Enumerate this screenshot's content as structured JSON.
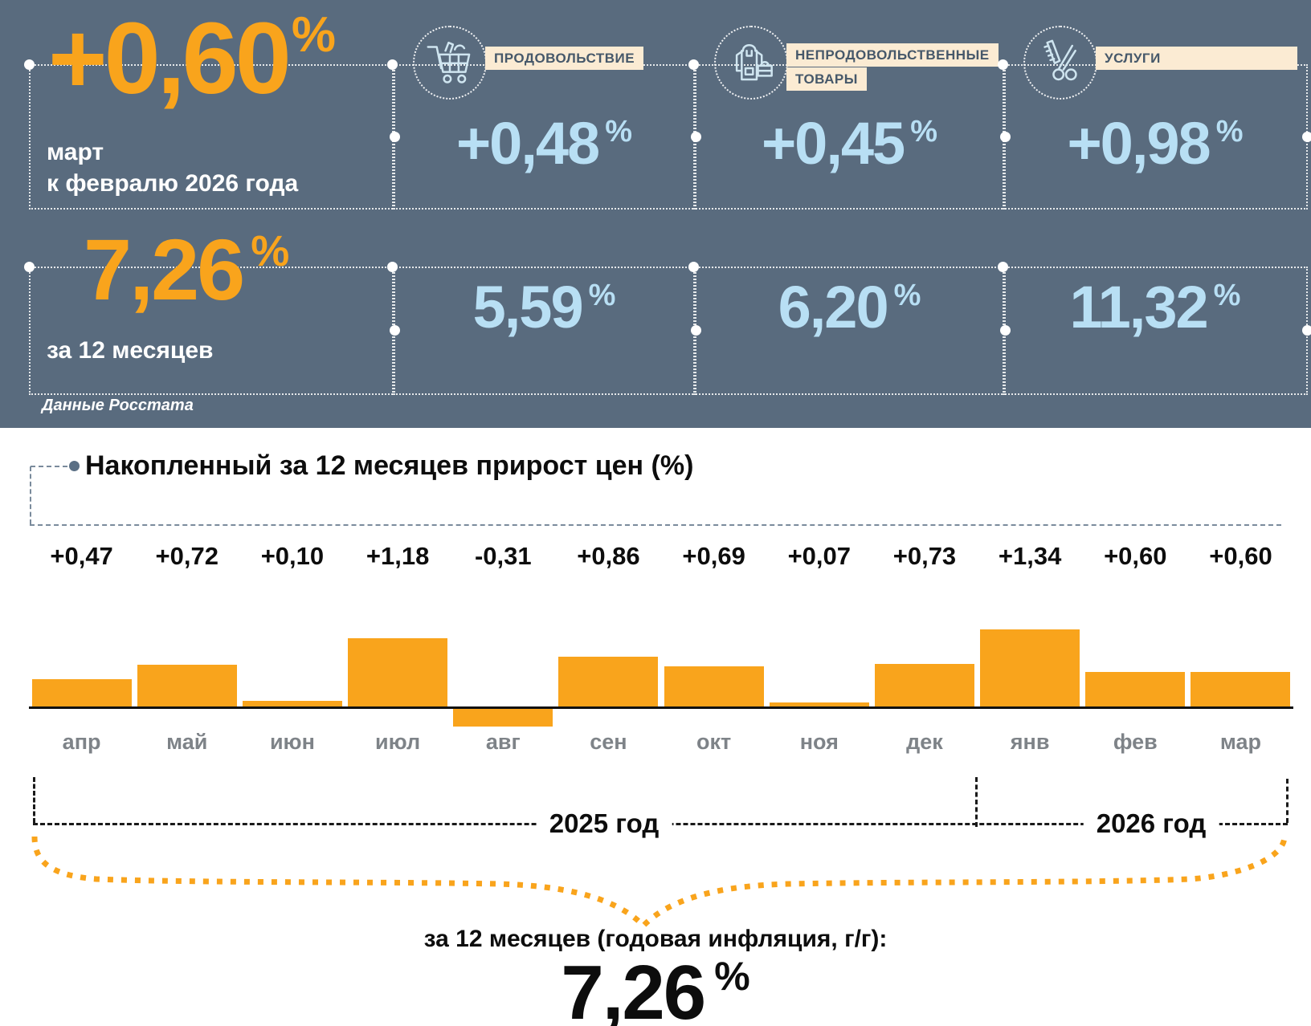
{
  "header": {
    "main": {
      "value": "+0,60",
      "percent": "%",
      "period_line1": "март",
      "period_line2": "к февралю 2026 года",
      "annual_value": "7,26",
      "annual_percent": "%",
      "annual_label": "за 12 месяцев"
    },
    "categories": [
      {
        "label": "ПРОДОВОЛЬСТВИЕ",
        "icon": "grocery-cart-icon",
        "monthly": "+0,48",
        "annual": "5,59",
        "percent": "%"
      },
      {
        "label": "НЕПРОДОВОЛЬСТВЕННЫЕ ТОВАРЫ",
        "icon": "clothes-bag-icon",
        "monthly": "+0,45",
        "annual": "6,20",
        "percent": "%"
      },
      {
        "label": "УСЛУГИ",
        "icon": "scissors-comb-icon",
        "monthly": "+0,98",
        "annual": "11,32",
        "percent": "%"
      }
    ],
    "source": "Данные Росстата"
  },
  "chart_data": {
    "type": "bar",
    "title": "Накопленный за 12 месяцев прирост цен (%)",
    "categories": [
      "апр",
      "май",
      "июн",
      "июл",
      "авг",
      "сен",
      "окт",
      "ноя",
      "дек",
      "янв",
      "фев",
      "мар"
    ],
    "values": [
      0.47,
      0.72,
      0.1,
      1.18,
      -0.31,
      0.86,
      0.69,
      0.07,
      0.73,
      1.34,
      0.6,
      0.6
    ],
    "value_labels": [
      "+0,47",
      "+0,72",
      "+0,10",
      "+1,18",
      "-0,31",
      "+0,86",
      "+0,69",
      "+0,07",
      "+0,73",
      "+1,34",
      "+0,60",
      "+0,60"
    ],
    "year_groups": [
      {
        "label": "2025 год",
        "months": 9
      },
      {
        "label": "2026 год",
        "months": 3
      }
    ],
    "ylim": [
      -0.31,
      1.34
    ],
    "grid": false,
    "legend": "none",
    "bar_color": "#F9A41C",
    "footer": {
      "label": "за 12 месяцев (годовая инфляция, г/г):",
      "value": "7,26",
      "percent": "%"
    }
  },
  "colors": {
    "panel_bg": "#596B7E",
    "accent_orange": "#F9A41C",
    "value_light_blue": "#B8DFF4",
    "label_bg_cream": "#FBEBD3",
    "label_text_slate": "#46586A",
    "month_gray": "#7E8388"
  }
}
